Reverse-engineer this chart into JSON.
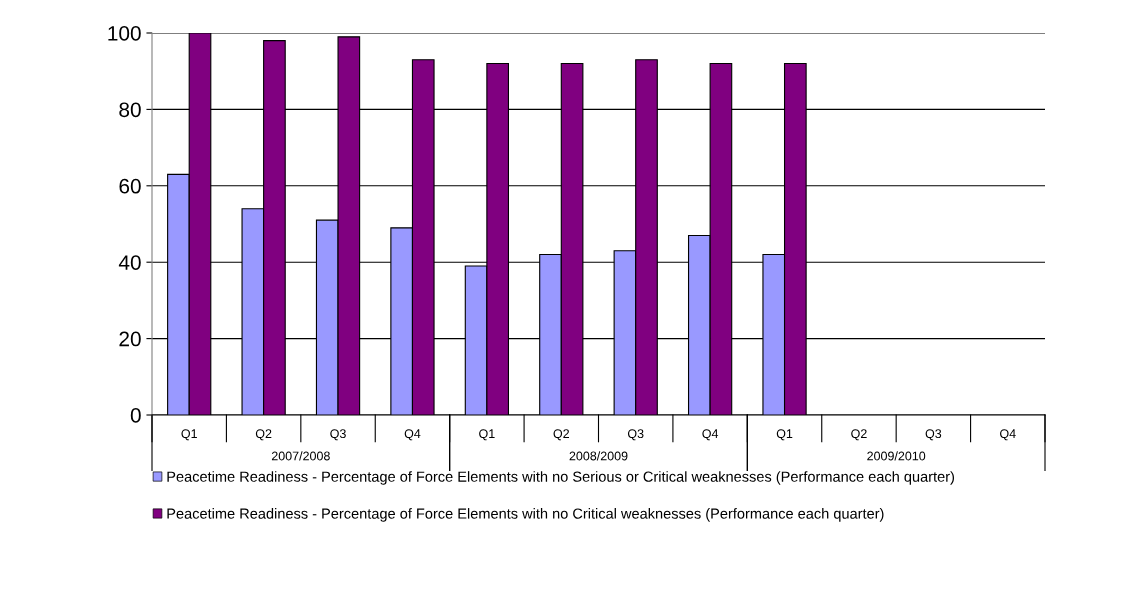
{
  "chart_data": {
    "type": "bar",
    "categories": [
      "Q1",
      "Q2",
      "Q3",
      "Q4",
      "Q1",
      "Q2",
      "Q3",
      "Q4",
      "Q1",
      "Q2",
      "Q3",
      "Q4"
    ],
    "series": [
      {
        "name": "Peacetime Readiness - Percentage of Force Elements with no Serious or Critical weaknesses (Performance each quarter)",
        "color": "#9999ff",
        "values": [
          63,
          54,
          51,
          49,
          39,
          42,
          43,
          47,
          42,
          null,
          null,
          null
        ]
      },
      {
        "name": "Peacetime Readiness - Percentage of Force Elements with no Critical weaknesses (Performance each quarter)",
        "color": "#800080",
        "values": [
          100,
          98,
          99,
          93,
          92,
          92,
          93,
          92,
          92,
          null,
          null,
          null
        ]
      }
    ],
    "annotations": [
      "2007/2008",
      "2008/2009",
      "2009/2010"
    ],
    "ylim": [
      0,
      100
    ],
    "yticks": [
      0,
      20,
      40,
      60,
      80,
      100
    ],
    "grid": "y",
    "legend": "bottom"
  }
}
